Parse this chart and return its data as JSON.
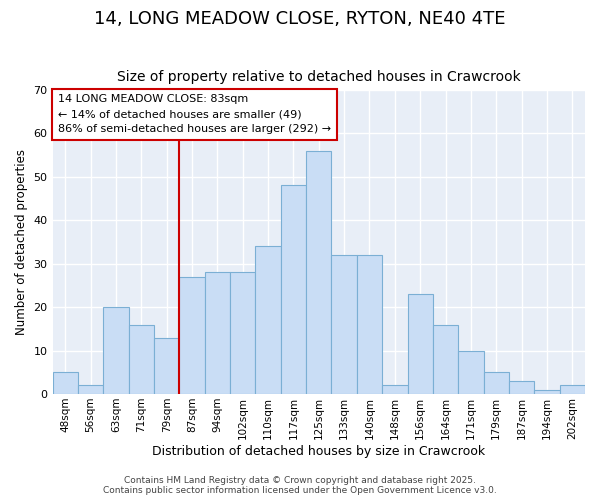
{
  "title": "14, LONG MEADOW CLOSE, RYTON, NE40 4TE",
  "subtitle": "Size of property relative to detached houses in Crawcrook",
  "xlabel": "Distribution of detached houses by size in Crawcrook",
  "ylabel": "Number of detached properties",
  "bar_labels": [
    "48sqm",
    "56sqm",
    "63sqm",
    "71sqm",
    "79sqm",
    "87sqm",
    "94sqm",
    "102sqm",
    "110sqm",
    "117sqm",
    "125sqm",
    "133sqm",
    "140sqm",
    "148sqm",
    "156sqm",
    "164sqm",
    "171sqm",
    "179sqm",
    "187sqm",
    "194sqm",
    "202sqm"
  ],
  "bar_heights": [
    5,
    2,
    20,
    16,
    13,
    27,
    28,
    28,
    34,
    48,
    56,
    32,
    32,
    2,
    23,
    16,
    10,
    5,
    3,
    1,
    2
  ],
  "bar_color": "#c9ddf5",
  "bar_edge_color": "#7bafd4",
  "annotation_line1": "14 LONG MEADOW CLOSE: 83sqm",
  "annotation_line2": "← 14% of detached houses are smaller (49)",
  "annotation_line3": "86% of semi-detached houses are larger (292) →",
  "annotation_box_color": "#ffffff",
  "annotation_box_edge": "#cc0000",
  "vline_color": "#cc0000",
  "vline_x": 5.0,
  "ylim": [
    0,
    70
  ],
  "yticks": [
    0,
    10,
    20,
    30,
    40,
    50,
    60,
    70
  ],
  "axes_bg_color": "#e8eef7",
  "grid_color": "#ffffff",
  "fig_bg_color": "#ffffff",
  "title_fontsize": 13,
  "subtitle_fontsize": 10,
  "footer_line1": "Contains HM Land Registry data © Crown copyright and database right 2025.",
  "footer_line2": "Contains public sector information licensed under the Open Government Licence v3.0."
}
